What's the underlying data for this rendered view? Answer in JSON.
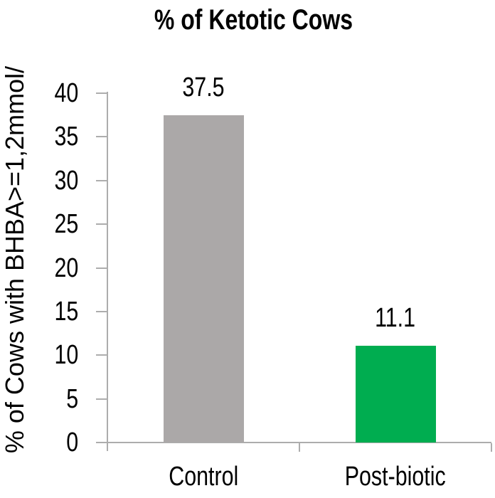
{
  "chart_data": {
    "type": "bar",
    "title": "% of Ketotic Cows",
    "ylabel": "% of Cows with BHBA>=1,2mmol/",
    "xlabel": "",
    "categories": [
      "Control",
      "Post-biotic"
    ],
    "values": [
      37.5,
      11.1
    ],
    "data_labels": [
      "37.5",
      "11.1"
    ],
    "bar_colors": [
      "#aba8a8",
      "#00ad50"
    ],
    "y_ticks": [
      0,
      5,
      10,
      15,
      20,
      25,
      30,
      35,
      40
    ],
    "ylim": [
      0,
      40
    ],
    "grid": false,
    "legend": "none",
    "axis_color": "#adadad",
    "text_color": "#000000",
    "background_color": "#ffffff"
  }
}
